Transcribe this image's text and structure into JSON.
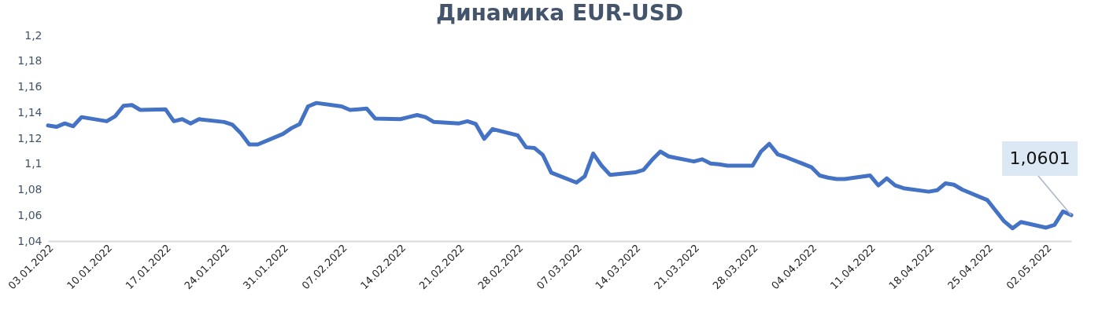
{
  "chart_data": {
    "type": "line",
    "title": "Динамика EUR-USD",
    "x": [
      "2022-01-03",
      "2022-01-04",
      "2022-01-05",
      "2022-01-06",
      "2022-01-07",
      "2022-01-10",
      "2022-01-11",
      "2022-01-12",
      "2022-01-13",
      "2022-01-14",
      "2022-01-17",
      "2022-01-18",
      "2022-01-19",
      "2022-01-20",
      "2022-01-21",
      "2022-01-24",
      "2022-01-25",
      "2022-01-26",
      "2022-01-27",
      "2022-01-28",
      "2022-01-31",
      "2022-02-01",
      "2022-02-02",
      "2022-02-03",
      "2022-02-04",
      "2022-02-07",
      "2022-02-08",
      "2022-02-09",
      "2022-02-10",
      "2022-02-11",
      "2022-02-14",
      "2022-02-15",
      "2022-02-16",
      "2022-02-17",
      "2022-02-18",
      "2022-02-21",
      "2022-02-22",
      "2022-02-23",
      "2022-02-24",
      "2022-02-25",
      "2022-02-28",
      "2022-03-01",
      "2022-03-02",
      "2022-03-03",
      "2022-03-04",
      "2022-03-07",
      "2022-03-08",
      "2022-03-09",
      "2022-03-10",
      "2022-03-11",
      "2022-03-14",
      "2022-03-15",
      "2022-03-16",
      "2022-03-17",
      "2022-03-18",
      "2022-03-21",
      "2022-03-22",
      "2022-03-23",
      "2022-03-24",
      "2022-03-25",
      "2022-03-28",
      "2022-03-29",
      "2022-03-30",
      "2022-03-31",
      "2022-04-01",
      "2022-04-04",
      "2022-04-05",
      "2022-04-06",
      "2022-04-07",
      "2022-04-08",
      "2022-04-11",
      "2022-04-12",
      "2022-04-13",
      "2022-04-14",
      "2022-04-15",
      "2022-04-18",
      "2022-04-19",
      "2022-04-20",
      "2022-04-21",
      "2022-04-22",
      "2022-04-25",
      "2022-04-26",
      "2022-04-27",
      "2022-04-28",
      "2022-04-29",
      "2022-05-02",
      "2022-05-03",
      "2022-05-04",
      "2022-05-05"
    ],
    "series": [
      {
        "color": "#4472c4",
        "values": [
          1.1299,
          1.1288,
          1.1315,
          1.1293,
          1.1364,
          1.1332,
          1.137,
          1.1452,
          1.1458,
          1.142,
          1.1425,
          1.1332,
          1.1348,
          1.1315,
          1.1348,
          1.1326,
          1.1304,
          1.1238,
          1.1151,
          1.1151,
          1.1233,
          1.1277,
          1.131,
          1.1447,
          1.1474,
          1.1447,
          1.142,
          1.1425,
          1.143,
          1.1353,
          1.1348,
          1.1364,
          1.138,
          1.1364,
          1.1326,
          1.1315,
          1.1332,
          1.131,
          1.1195,
          1.1271,
          1.1222,
          1.1129,
          1.1123,
          1.1069,
          1.0932,
          1.0855,
          1.0904,
          1.108,
          1.0986,
          1.0915,
          1.0934,
          1.0953,
          1.103,
          1.1096,
          1.1058,
          1.1019,
          1.1036,
          1.1003,
          1.0997,
          1.0986,
          1.0986,
          1.1096,
          1.1156,
          1.1074,
          1.1052,
          1.0975,
          1.091,
          1.0893,
          1.0882,
          1.0882,
          1.091,
          1.0833,
          1.0888,
          1.0833,
          1.0811,
          1.0784,
          1.0795,
          1.0849,
          1.0838,
          1.08,
          1.0718,
          1.0635,
          1.0553,
          1.0499,
          1.0548,
          1.0504,
          1.0526,
          1.063,
          1.0601
        ]
      }
    ],
    "xlim": [
      "2022-01-03",
      "2022-05-05"
    ],
    "xticks": [
      {
        "value": "2022-01-03",
        "label": "03.01.2022"
      },
      {
        "value": "2022-01-10",
        "label": "10.01.2022"
      },
      {
        "value": "2022-01-17",
        "label": "17.01.2022"
      },
      {
        "value": "2022-01-24",
        "label": "24.01.2022"
      },
      {
        "value": "2022-01-31",
        "label": "31.01.2022"
      },
      {
        "value": "2022-02-07",
        "label": "07.02.2022"
      },
      {
        "value": "2022-02-14",
        "label": "14.02.2022"
      },
      {
        "value": "2022-02-21",
        "label": "21.02.2022"
      },
      {
        "value": "2022-02-28",
        "label": "28.02.2022"
      },
      {
        "value": "2022-03-07",
        "label": "07.03.2022"
      },
      {
        "value": "2022-03-14",
        "label": "14.03.2022"
      },
      {
        "value": "2022-03-21",
        "label": "21.03.2022"
      },
      {
        "value": "2022-03-28",
        "label": "28.03.2022"
      },
      {
        "value": "2022-04-04",
        "label": "04.04.2022"
      },
      {
        "value": "2022-04-11",
        "label": "11.04.2022"
      },
      {
        "value": "2022-04-18",
        "label": "18.04.2022"
      },
      {
        "value": "2022-04-25",
        "label": "25.04.2022"
      },
      {
        "value": "2022-05-02",
        "label": "02.05.2022"
      }
    ],
    "ylim": [
      1.04,
      1.2
    ],
    "yticks": [
      {
        "value": 1.04,
        "label": "1,04"
      },
      {
        "value": 1.06,
        "label": "1,06"
      },
      {
        "value": 1.08,
        "label": "1,08"
      },
      {
        "value": 1.1,
        "label": "1,1"
      },
      {
        "value": 1.12,
        "label": "1,12"
      },
      {
        "value": 1.14,
        "label": "1,14"
      },
      {
        "value": 1.16,
        "label": "1,16"
      },
      {
        "value": 1.18,
        "label": "1,18"
      },
      {
        "value": 1.2,
        "label": "1,2"
      }
    ],
    "annotations": [
      {
        "text": "1,0601",
        "x": "2022-05-05",
        "y": 1.0601
      }
    ],
    "grid": false,
    "marker": "none",
    "line_style": "solid"
  }
}
